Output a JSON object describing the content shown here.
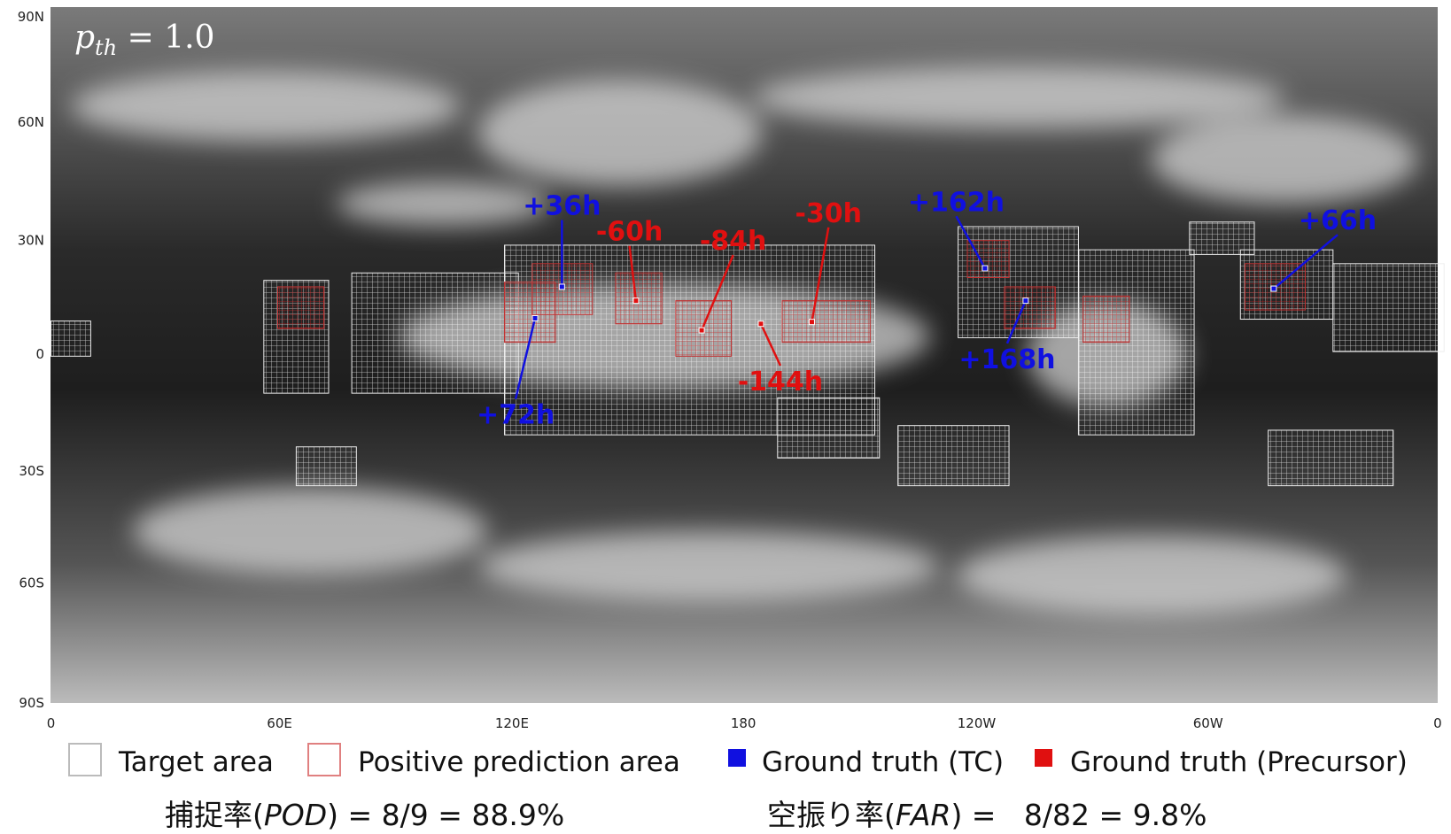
{
  "title": {
    "base": "p",
    "subscript": "th",
    "rest": " = 1.0"
  },
  "lat_labels": [
    "90N",
    "60N",
    "30N",
    "0",
    "30S",
    "60S",
    "90S"
  ],
  "lon_labels": [
    "0",
    "60E",
    "120E",
    "180",
    "120W",
    "60W",
    "0"
  ],
  "annotations": [
    {
      "label": "+36h",
      "color": "#1010e0"
    },
    {
      "label": "-60h",
      "color": "#e01010"
    },
    {
      "label": "-84h",
      "color": "#e01010"
    },
    {
      "label": "-30h",
      "color": "#e01010"
    },
    {
      "label": "+162h",
      "color": "#1010e0"
    },
    {
      "label": "+66h",
      "color": "#1010e0"
    },
    {
      "label": "+72h",
      "color": "#1010e0"
    },
    {
      "label": "-144h",
      "color": "#e01010"
    },
    {
      "label": "+168h",
      "color": "#1010e0"
    }
  ],
  "legend": [
    "Target area",
    "Positive prediction area",
    "Ground truth (TC)",
    "Ground truth (Precursor)"
  ],
  "stats": {
    "pod": {
      "prefix": "捕捉率(",
      "metric": "POD",
      "suffix": ") = 8/9 = 88.9%"
    },
    "far": {
      "prefix": "空振り率(",
      "metric": "FAR",
      "suffix": ") =   8/82 = 9.8%"
    }
  }
}
